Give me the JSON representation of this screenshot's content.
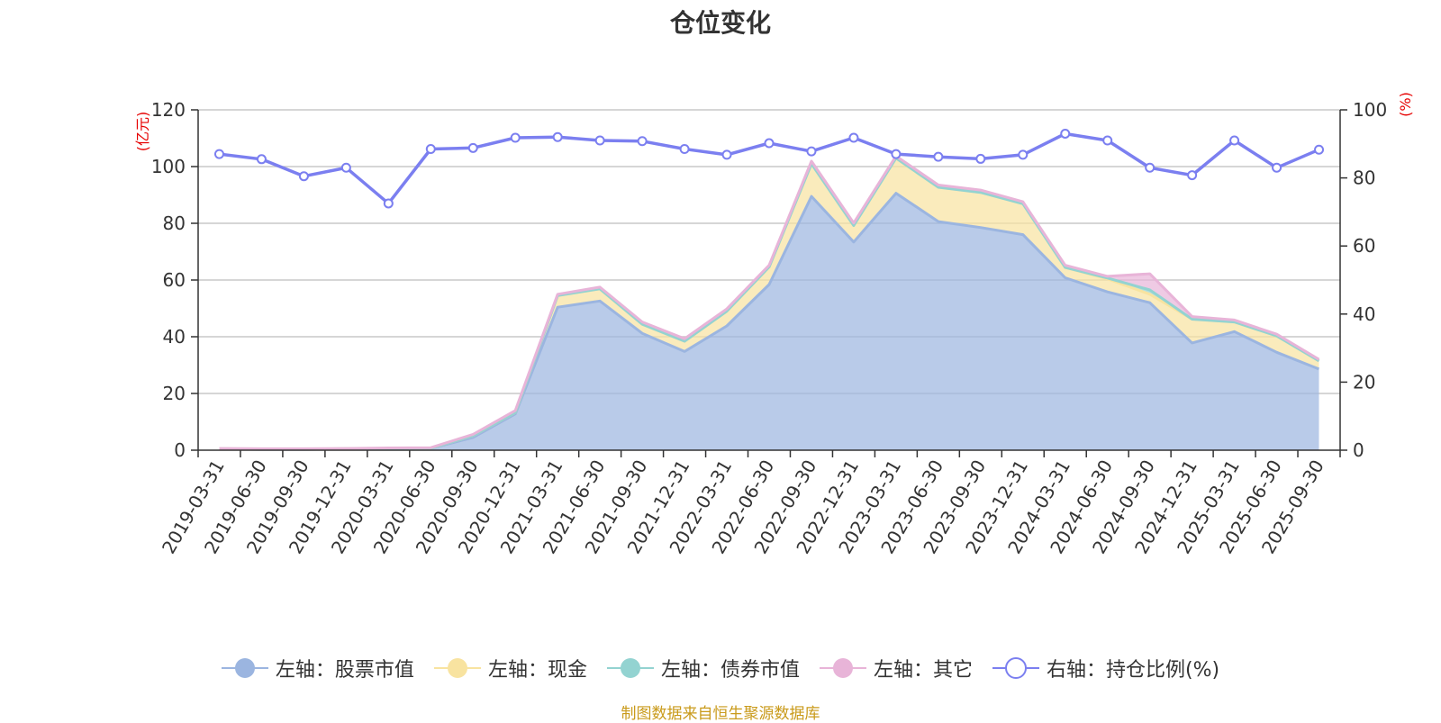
{
  "chart_data": {
    "type": "area",
    "title": "仓位变化",
    "y_left_unit": "(亿元)",
    "y_right_unit": "(%)",
    "ylim_left": [
      0,
      120
    ],
    "ylim_right": [
      0,
      100
    ],
    "y_left_ticks": [
      0,
      20,
      40,
      60,
      80,
      100,
      120
    ],
    "y_right_ticks": [
      0,
      20,
      40,
      60,
      80,
      100
    ],
    "grid": true,
    "legend_position": "bottom",
    "stacked": true,
    "categories": [
      "2019-03-31",
      "2019-06-30",
      "2019-09-30",
      "2019-12-31",
      "2020-03-31",
      "2020-06-30",
      "2020-09-30",
      "2020-12-31",
      "2021-03-31",
      "2021-06-30",
      "2021-09-30",
      "2021-12-31",
      "2022-03-31",
      "2022-06-30",
      "2022-09-30",
      "2022-12-31",
      "2023-03-31",
      "2023-06-30",
      "2023-09-30",
      "2023-12-31",
      "2024-03-31",
      "2024-06-30",
      "2024-09-30",
      "2024-12-31",
      "2025-03-31",
      "2025-06-30",
      "2025-09-30"
    ],
    "series": [
      {
        "name": "左轴：股票市值",
        "axis": "left",
        "type": "area",
        "color": "#9bb5e0",
        "values": [
          0.4,
          0.3,
          0.3,
          0.4,
          0.5,
          0.6,
          4.5,
          12.8,
          50.4,
          52.6,
          41.2,
          34.8,
          43.8,
          58.4,
          89.5,
          73.4,
          90.6,
          80.6,
          78.5,
          76.0,
          60.8,
          55.8,
          52.0,
          37.8,
          41.8,
          34.5,
          28.6
        ]
      },
      {
        "name": "左轴：现金",
        "axis": "left",
        "type": "area",
        "color": "#f8e3a0",
        "values": [
          0.1,
          0.1,
          0.1,
          0.1,
          0.1,
          0.1,
          0.6,
          0.5,
          4.1,
          4.3,
          3.2,
          3.6,
          5.2,
          6.2,
          11.5,
          5.8,
          12.4,
          12.1,
          12.4,
          10.9,
          3.6,
          4.6,
          3.0,
          8.4,
          3.4,
          5.8,
          2.9
        ]
      },
      {
        "name": "左轴：债券市值",
        "axis": "left",
        "type": "area",
        "color": "#93d3d1",
        "values": [
          0,
          0,
          0,
          0,
          0,
          0,
          0,
          0,
          0,
          0,
          0,
          0,
          0,
          0,
          0,
          0,
          0,
          0,
          0,
          0,
          0,
          0.3,
          1.5,
          0,
          0,
          0,
          0
        ]
      },
      {
        "name": "左轴：其它",
        "axis": "left",
        "type": "area",
        "color": "#e8b4d8",
        "values": [
          0.1,
          0.1,
          0.1,
          0.1,
          0.2,
          0.2,
          0.5,
          0.7,
          0.5,
          0.6,
          0.8,
          0.9,
          0.8,
          0.6,
          0.9,
          0.9,
          0.7,
          0.8,
          0.8,
          0.7,
          0.8,
          0.6,
          5.7,
          0.9,
          0.7,
          0.6,
          0.5
        ]
      },
      {
        "name": "右轴：持仓比例(%)",
        "axis": "right",
        "type": "line",
        "color": "#7b7ff0",
        "values": [
          87.0,
          85.5,
          80.5,
          83.0,
          72.5,
          88.5,
          88.8,
          91.8,
          92.0,
          91.0,
          90.8,
          88.5,
          86.8,
          90.2,
          87.8,
          91.8,
          87.0,
          86.2,
          85.6,
          86.8,
          93.0,
          91.0,
          83.0,
          80.8,
          91.0,
          83.0,
          88.3
        ]
      }
    ]
  },
  "legend": {
    "items": [
      {
        "label": "左轴：股票市值",
        "color": "#9bb5e0",
        "style": "filled",
        "line_color": "#9bb5e0"
      },
      {
        "label": "左轴：现金",
        "color": "#f8e3a0",
        "style": "filled",
        "line_color": "#f8e3a0"
      },
      {
        "label": "左轴：债券市值",
        "color": "#93d3d1",
        "style": "filled",
        "line_color": "#93d3d1"
      },
      {
        "label": "左轴：其它",
        "color": "#e8b4d8",
        "style": "filled",
        "line_color": "#e8b4d8"
      },
      {
        "label": "右轴：持仓比例(%)",
        "color": "#7b7ff0",
        "style": "hollow",
        "line_color": "#7b7ff0"
      }
    ]
  },
  "source_note": "制图数据来自恒生聚源数据库"
}
